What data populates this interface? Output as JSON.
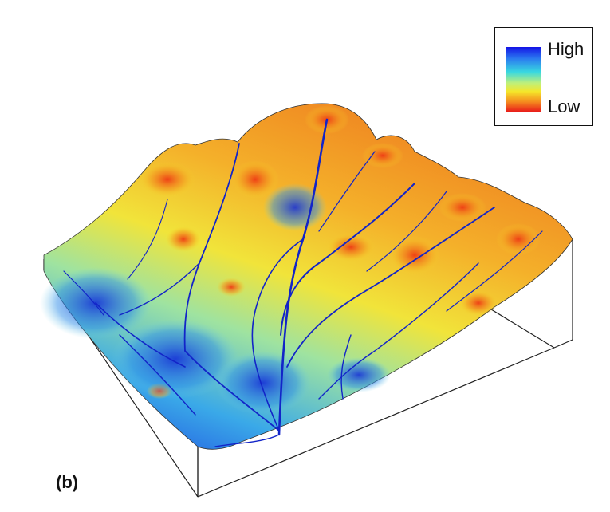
{
  "figure": {
    "panel_label": "(b)",
    "legend": {
      "high_label": "High",
      "low_label": "Low"
    },
    "colors": {
      "high": "#1414e6",
      "mid_high": "#38d8e0",
      "mid": "#f5e62a",
      "mid_low": "#f58a1e",
      "low": "#e8141a",
      "box_edges": "#222222"
    }
  }
}
